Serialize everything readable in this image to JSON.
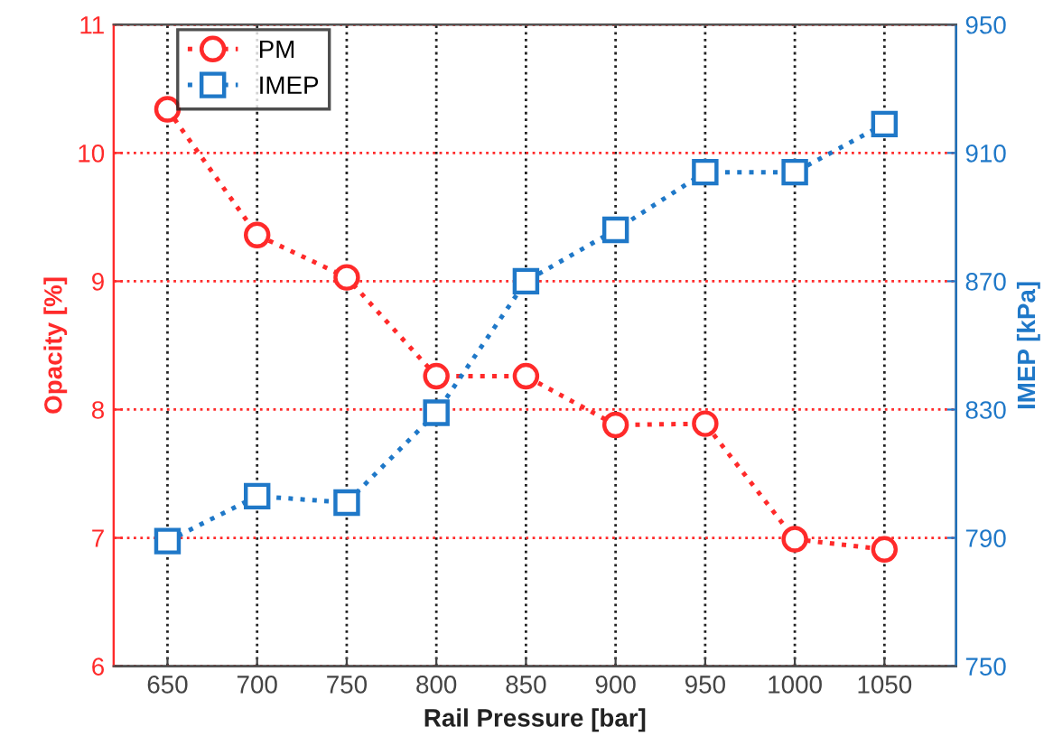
{
  "chart_data": {
    "type": "line",
    "xlabel": "Rail Pressure [bar]",
    "ylabel": "Opacity [%]",
    "y2label": "IMEP [kPa]",
    "x": [
      650,
      700,
      750,
      800,
      850,
      900,
      950,
      1000,
      1050
    ],
    "xlim": [
      620,
      1090
    ],
    "xticks": [
      650,
      700,
      750,
      800,
      850,
      900,
      950,
      1000,
      1050
    ],
    "ylim": [
      6,
      11
    ],
    "yticks": [
      6,
      7,
      8,
      9,
      10,
      11
    ],
    "y2lim": [
      750,
      950
    ],
    "y2ticks": [
      750,
      790,
      830,
      870,
      910,
      950
    ],
    "grid": true,
    "legend": "top left",
    "line_style": "dotted",
    "series": [
      {
        "name": "PM",
        "color": "#ff2a2a",
        "marker": "circle",
        "values": [
          10.34,
          9.36,
          9.03,
          8.26,
          8.26,
          7.88,
          7.89,
          6.99,
          6.91
        ]
      },
      {
        "name": "IMEP",
        "color": "#1f78c8",
        "marker": "square",
        "axis": "y2",
        "values": [
          789,
          803,
          801,
          829,
          870,
          886,
          904,
          904,
          919
        ]
      }
    ]
  }
}
